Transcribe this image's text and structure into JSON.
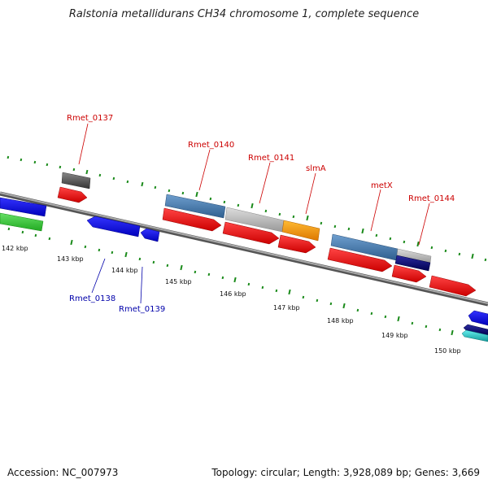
{
  "title": "Ralstonia metallidurans CH34 chromosome 1, complete sequence",
  "footer": {
    "accession": "Accession: NC_007973",
    "summary": "Topology: circular; Length: 3,928,089 bp; Genes: 3,669"
  },
  "scale_labels": [
    "142 kbp",
    "143 kbp",
    "144 kbp",
    "145 kbp",
    "146 kbp",
    "147 kbp",
    "148 kbp",
    "149 kbp",
    "150 kbp"
  ],
  "gene_labels": {
    "forward": [
      "Rmet_0137",
      "Rmet_0140",
      "Rmet_0141",
      "slmA",
      "metX",
      "Rmet_0144"
    ],
    "reverse": [
      "Rmet_0138",
      "Rmet_0139"
    ]
  },
  "colors": {
    "forward_cog": "#ee1111",
    "backbone": "#888888",
    "tick": "#1a8a1a",
    "blue_gene": "#1a1aee",
    "green_gene": "#33cc33",
    "steel_gene": "#4a7fb5",
    "grey_gene": "#bbbbbb",
    "dark_gene": "#555555",
    "orange_gene": "#ff9900",
    "navy_gene": "#0a0a70",
    "cyan_gene": "#33cccc"
  }
}
